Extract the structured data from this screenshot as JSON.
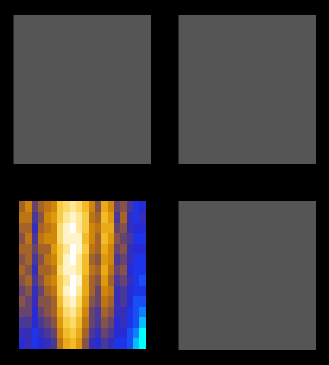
{
  "chart_data": [
    {
      "type": "blank",
      "tick_labels": false
    },
    {
      "type": "blank",
      "tick_labels": false
    },
    {
      "type": "heatmap",
      "tick_labels": false,
      "cells": [
        [
          0.5,
          0.6,
          0.4,
          0.5,
          0.55,
          0.6,
          0.8,
          0.85,
          0.9,
          0.85,
          0.75,
          0.6,
          0.45,
          0.7,
          0.6,
          0.4,
          0.45,
          0.35,
          0.2,
          0.25
        ],
        [
          0.55,
          0.55,
          0.35,
          0.45,
          0.6,
          0.65,
          0.8,
          0.9,
          0.95,
          0.9,
          0.8,
          0.55,
          0.5,
          0.75,
          0.65,
          0.35,
          0.5,
          0.3,
          0.2,
          0.3
        ],
        [
          0.5,
          0.5,
          0.3,
          0.5,
          0.55,
          0.6,
          0.85,
          0.95,
          1.0,
          0.9,
          0.8,
          0.6,
          0.55,
          0.7,
          0.7,
          0.4,
          0.45,
          0.3,
          0.25,
          0.25
        ],
        [
          0.45,
          0.55,
          0.35,
          0.55,
          0.6,
          0.6,
          0.85,
          0.95,
          0.95,
          0.95,
          0.75,
          0.6,
          0.5,
          0.75,
          0.65,
          0.45,
          0.4,
          0.35,
          0.2,
          0.2
        ],
        [
          0.5,
          0.5,
          0.4,
          0.5,
          0.5,
          0.65,
          0.8,
          0.9,
          1.0,
          0.95,
          0.8,
          0.55,
          0.5,
          0.7,
          0.6,
          0.4,
          0.45,
          0.3,
          0.25,
          0.25
        ],
        [
          0.45,
          0.5,
          0.35,
          0.45,
          0.55,
          0.6,
          0.8,
          0.95,
          1.0,
          0.9,
          0.75,
          0.5,
          0.45,
          0.65,
          0.6,
          0.35,
          0.4,
          0.3,
          0.2,
          0.2
        ],
        [
          0.5,
          0.45,
          0.3,
          0.5,
          0.5,
          0.55,
          0.85,
          0.95,
          0.95,
          0.9,
          0.75,
          0.55,
          0.5,
          0.7,
          0.55,
          0.4,
          0.45,
          0.25,
          0.2,
          0.2
        ],
        [
          0.45,
          0.5,
          0.35,
          0.45,
          0.55,
          0.6,
          0.8,
          0.9,
          1.0,
          0.95,
          0.7,
          0.5,
          0.45,
          0.65,
          0.5,
          0.35,
          0.4,
          0.3,
          0.2,
          0.15
        ],
        [
          0.4,
          0.45,
          0.3,
          0.4,
          0.5,
          0.55,
          0.8,
          0.95,
          1.0,
          0.9,
          0.7,
          0.5,
          0.4,
          0.6,
          0.55,
          0.3,
          0.35,
          0.25,
          0.2,
          0.2
        ],
        [
          0.45,
          0.4,
          0.3,
          0.45,
          0.45,
          0.5,
          0.75,
          0.9,
          0.95,
          0.85,
          0.65,
          0.45,
          0.4,
          0.55,
          0.5,
          0.3,
          0.35,
          0.25,
          0.15,
          0.15
        ],
        [
          0.4,
          0.4,
          0.25,
          0.4,
          0.45,
          0.5,
          0.7,
          0.85,
          0.9,
          0.8,
          0.6,
          0.4,
          0.35,
          0.5,
          0.45,
          0.3,
          0.3,
          0.2,
          0.15,
          0.1
        ],
        [
          0.35,
          0.35,
          0.25,
          0.35,
          0.4,
          0.45,
          0.65,
          0.8,
          0.85,
          0.75,
          0.55,
          0.4,
          0.35,
          0.45,
          0.4,
          0.25,
          0.3,
          0.2,
          0.15,
          0.05
        ],
        [
          0.3,
          0.3,
          0.2,
          0.3,
          0.35,
          0.4,
          0.6,
          0.75,
          0.8,
          0.7,
          0.5,
          0.35,
          0.3,
          0.4,
          0.35,
          0.25,
          0.25,
          0.15,
          0.1,
          0.0
        ],
        [
          0.25,
          0.3,
          0.2,
          0.25,
          0.3,
          0.35,
          0.55,
          0.7,
          0.75,
          0.65,
          0.45,
          0.3,
          0.25,
          0.35,
          0.3,
          0.2,
          0.2,
          0.15,
          0.05,
          0.0
        ]
      ]
    },
    {
      "type": "blank",
      "tick_labels": false
    }
  ]
}
